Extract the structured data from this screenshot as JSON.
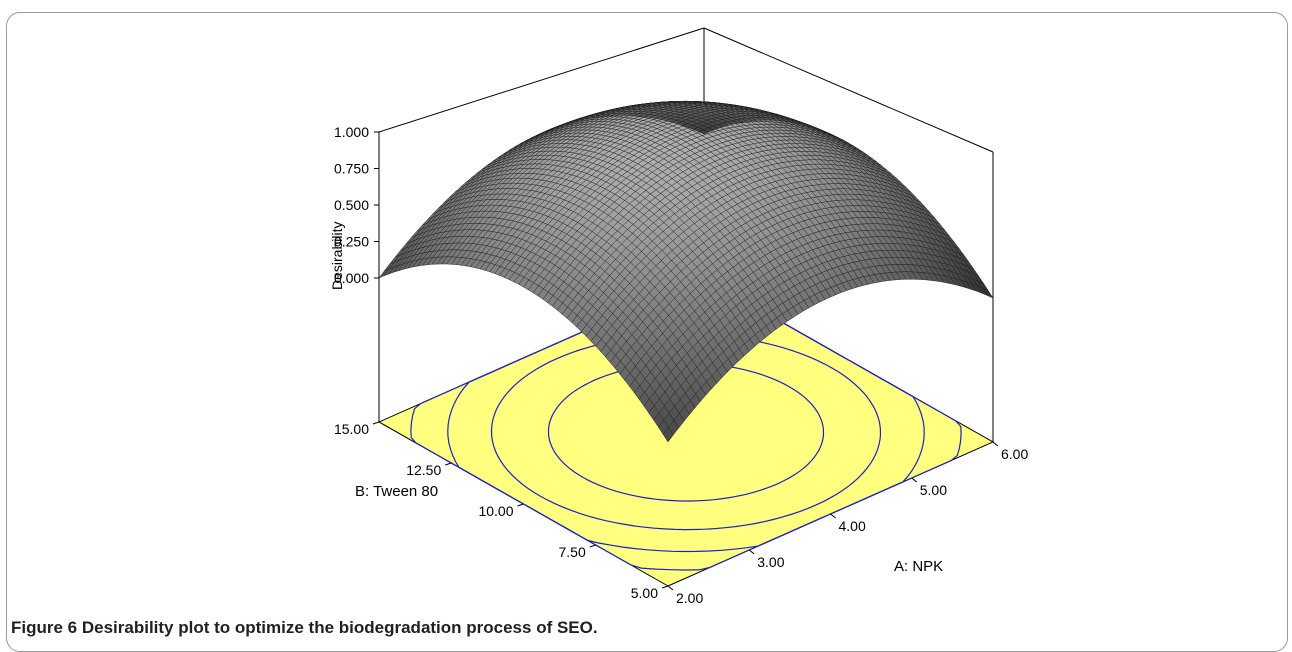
{
  "caption": {
    "label": "Figure 6",
    "text": "Desirability plot to optimize the biodegradation process of SEO."
  },
  "colors": {
    "floor": "#ffff80",
    "contour": "#2020c0",
    "surface_dark": "#3a3a3a",
    "surface_light": "#a8a8a8"
  },
  "chart_data": {
    "type": "surface",
    "title": "",
    "xlabel": "A: NPK",
    "ylabel": "B: Tween 80",
    "zlabel": "Desirability",
    "x_range": [
      2.0,
      6.0
    ],
    "y_range": [
      5.0,
      15.0
    ],
    "z_range": [
      0.0,
      1.0
    ],
    "x_ticks": [
      "2.00",
      "3.00",
      "4.00",
      "5.00",
      "6.00"
    ],
    "y_ticks": [
      "5.00",
      "7.50",
      "10.00",
      "12.50",
      "15.00"
    ],
    "z_ticks": [
      "0.000",
      "0.250",
      "0.500",
      "0.750",
      "1.000"
    ],
    "surface_corners": [
      {
        "x": 2.0,
        "y": 5.0,
        "z": 0.0
      },
      {
        "x": 6.0,
        "y": 5.0,
        "z": 0.0
      },
      {
        "x": 2.0,
        "y": 15.0,
        "z": 0.0
      },
      {
        "x": 6.0,
        "y": 15.0,
        "z": 0.0
      }
    ],
    "optimum": {
      "x": 4.0,
      "y": 10.0,
      "z": 1.0
    },
    "contour_levels": [
      0.2,
      0.4,
      0.6,
      0.8
    ],
    "grid_lines": 60
  }
}
